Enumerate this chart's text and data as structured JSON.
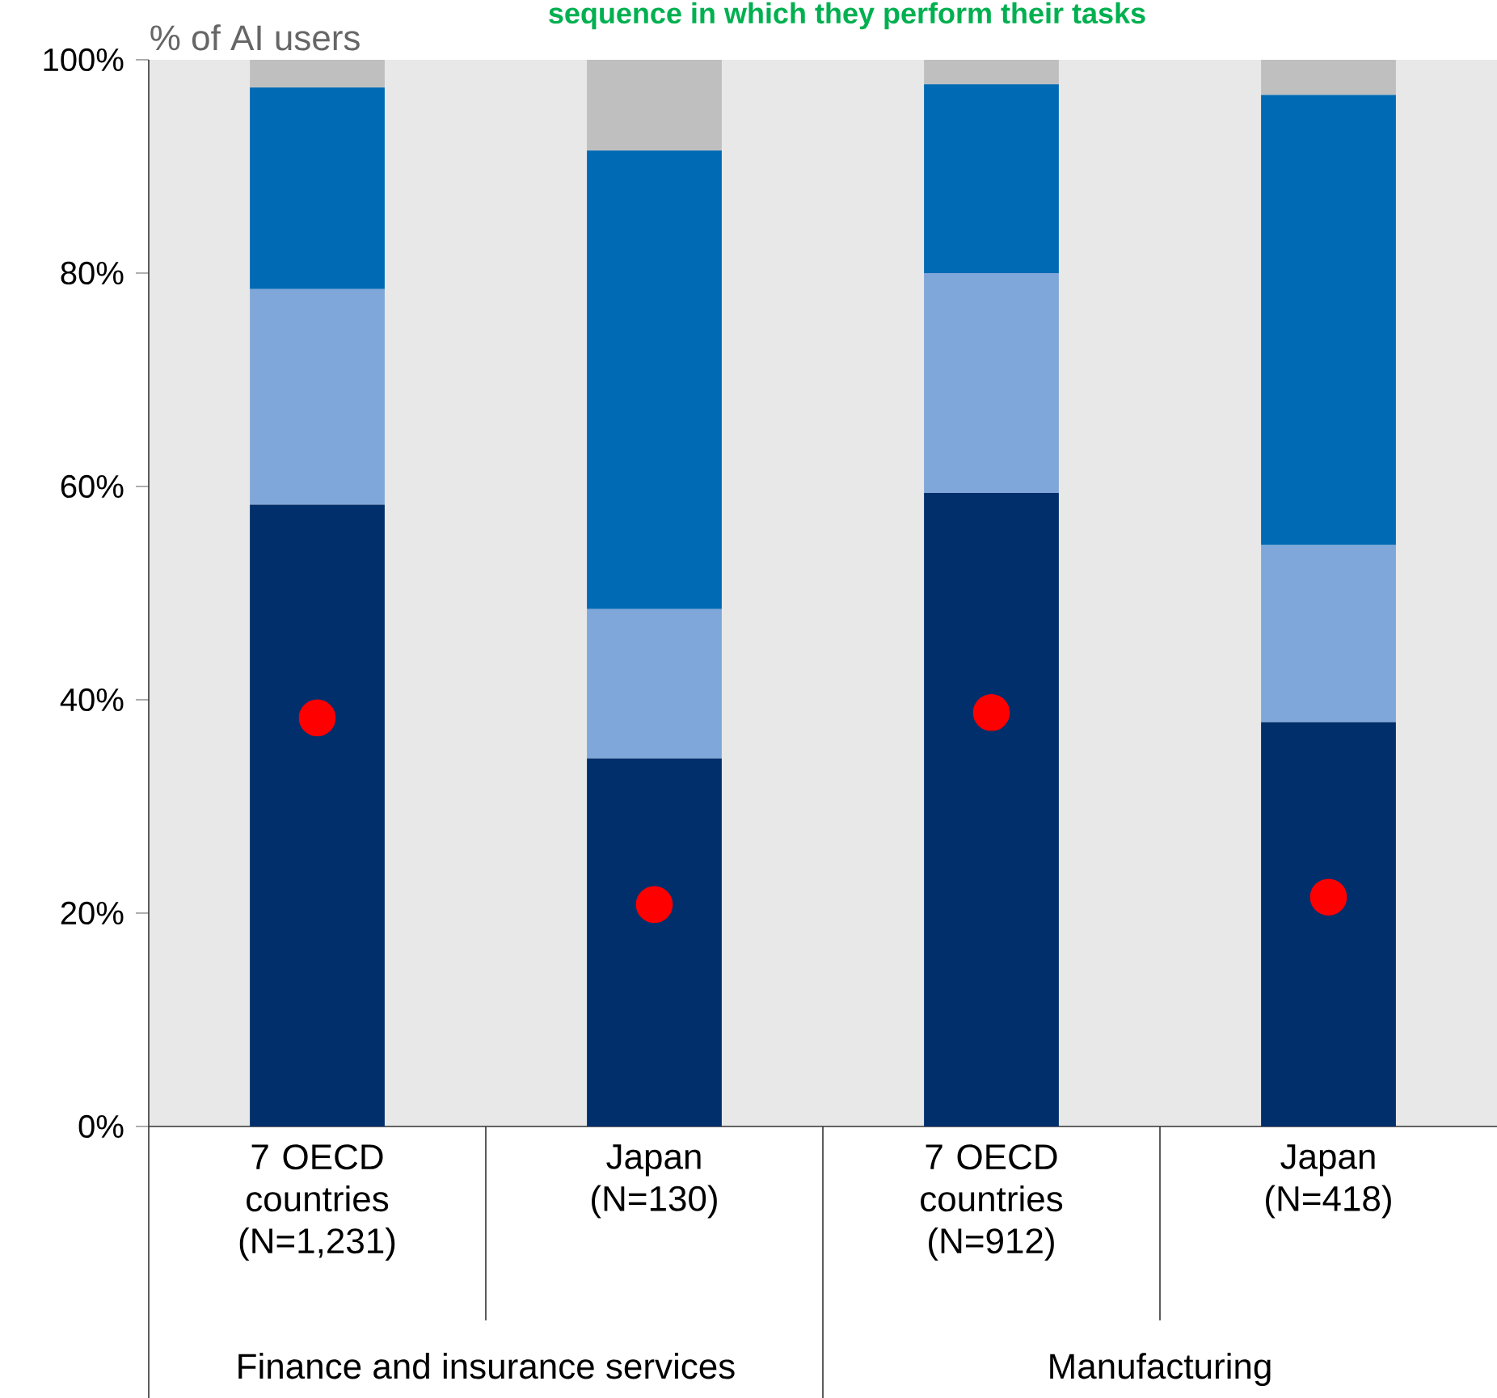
{
  "chart_data": {
    "type": "bar",
    "stacked": true,
    "title": "sequence in which they perform their tasks",
    "ylabel": "% of AI users",
    "categories": [
      "7 OECD countries (N=1,231)",
      "Japan (N=130)",
      "7 OECD countries (N=912)",
      "Japan (N=418)"
    ],
    "series": [
      {
        "color": "#002f6c",
        "values": [
          58.3,
          34.5,
          59.4,
          37.9
        ]
      },
      {
        "color": "#7fa7d9",
        "values": [
          20.2,
          14.0,
          20.6,
          16.6
        ]
      },
      {
        "color": "#006ab4",
        "values": [
          18.9,
          43.0,
          17.7,
          42.2
        ]
      },
      {
        "color": "#bfbfbf",
        "values": [
          2.6,
          8.5,
          2.3,
          3.3
        ]
      },
      {
        "type": "scatter",
        "marker": "circle",
        "color": "#ff0000",
        "x": [
          "7 OECD countries (N=1,231)",
          "Japan (N=130)",
          "7 OECD countries (N=912)",
          "Japan (N=418)"
        ],
        "values": [
          38.3,
          20.8,
          38.8,
          21.5
        ]
      }
    ],
    "ylim": [
      0,
      100
    ],
    "yticks": [
      {
        "value": 0,
        "label": "0%"
      },
      {
        "value": 20,
        "label": "20%"
      },
      {
        "value": 40,
        "label": "40%"
      },
      {
        "value": 60,
        "label": "60%"
      },
      {
        "value": 80,
        "label": "80%"
      },
      {
        "value": 100,
        "label": "100%"
      }
    ],
    "annotations": [
      "Finance and insurance services",
      "Manufacturing"
    ]
  }
}
